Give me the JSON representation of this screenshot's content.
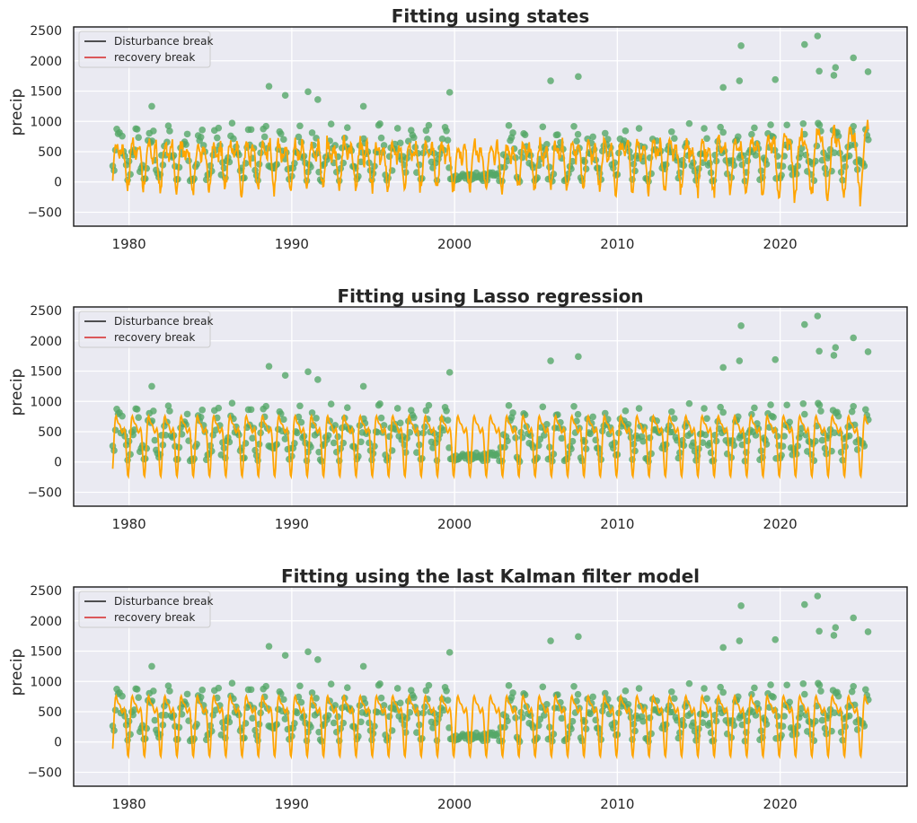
{
  "chart_data": [
    {
      "type": "line",
      "title": "Fitting using states",
      "xlabel": "",
      "ylabel": "precip",
      "xlim": [
        1976.6,
        2027.8
      ],
      "ylim": [
        -730,
        2560
      ],
      "xticks": [
        1980,
        1990,
        2000,
        2010,
        2020
      ],
      "yticks": [
        -500,
        0,
        500,
        1000,
        1500,
        2000,
        2500
      ],
      "grid": true,
      "legend_position": "top-left",
      "legend": [
        {
          "label": "Disturbance break",
          "color": "#1a1a1a"
        },
        {
          "label": "recovery break",
          "color": "#d62728"
        }
      ],
      "fit_model": "states",
      "colors": {
        "points": "#55a868",
        "fit": "#ffa500",
        "background": "#eaeaf2"
      }
    },
    {
      "type": "line",
      "title": "Fitting using Lasso regression",
      "xlabel": "",
      "ylabel": "precip",
      "xlim": [
        1976.6,
        2027.8
      ],
      "ylim": [
        -730,
        2560
      ],
      "xticks": [
        1980,
        1990,
        2000,
        2010,
        2020
      ],
      "yticks": [
        -500,
        0,
        500,
        1000,
        1500,
        2000,
        2500
      ],
      "grid": true,
      "legend_position": "top-left",
      "legend": [
        {
          "label": "Disturbance break",
          "color": "#1a1a1a"
        },
        {
          "label": "recovery break",
          "color": "#d62728"
        }
      ],
      "fit_model": "harmonic",
      "colors": {
        "points": "#55a868",
        "fit": "#ffa500",
        "background": "#eaeaf2"
      }
    },
    {
      "type": "line",
      "title": "Fitting using the last Kalman filter model",
      "xlabel": "",
      "ylabel": "precip",
      "xlim": [
        1976.6,
        2027.8
      ],
      "ylim": [
        -730,
        2560
      ],
      "xticks": [
        1980,
        1990,
        2000,
        2010,
        2020
      ],
      "yticks": [
        -500,
        0,
        500,
        1000,
        1500,
        2000,
        2500
      ],
      "grid": true,
      "legend_position": "top-left",
      "legend": [
        {
          "label": "Disturbance break",
          "color": "#1a1a1a"
        },
        {
          "label": "recovery break",
          "color": "#d62728"
        }
      ],
      "fit_model": "harmonic",
      "colors": {
        "points": "#55a868",
        "fit": "#ffa500",
        "background": "#eaeaf2"
      }
    }
  ],
  "observations": {
    "description_series": "precip",
    "outliers": [
      [
        1981.4,
        1250
      ],
      [
        1988.6,
        1580
      ],
      [
        1989.6,
        1430
      ],
      [
        1991.0,
        1490
      ],
      [
        1991.6,
        1360
      ],
      [
        1994.4,
        1250
      ],
      [
        1999.7,
        1480
      ],
      [
        2005.9,
        1670
      ],
      [
        2007.6,
        1740
      ],
      [
        2016.5,
        1560
      ],
      [
        2017.6,
        2250
      ],
      [
        2017.5,
        1670
      ],
      [
        2019.7,
        1690
      ],
      [
        2021.5,
        2270
      ],
      [
        2022.3,
        2410
      ],
      [
        2022.4,
        1830
      ],
      [
        2023.4,
        1890
      ],
      [
        2024.5,
        2050
      ],
      [
        2025.4,
        1820
      ],
      [
        2023.3,
        1760
      ]
    ]
  }
}
